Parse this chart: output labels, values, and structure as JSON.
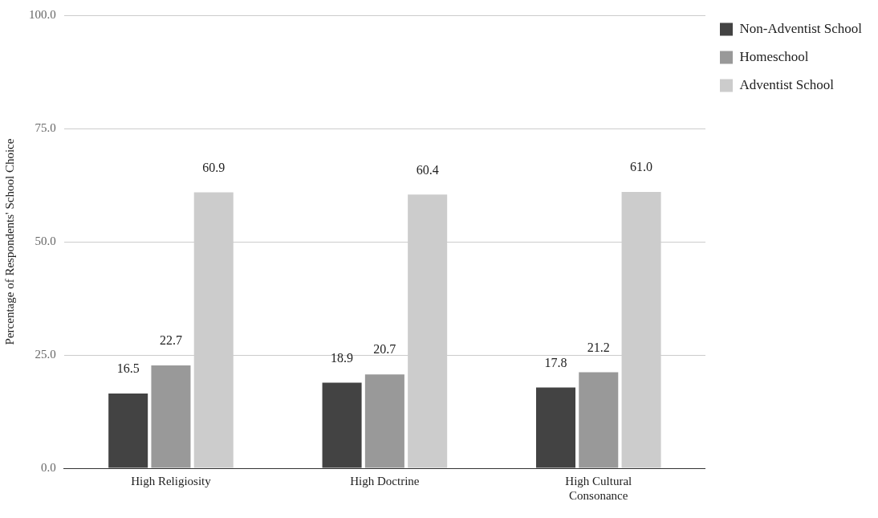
{
  "chart_data": {
    "type": "bar",
    "ylabel": "Percentage of Respondents' School Choice",
    "categories": [
      "High Religiosity",
      "High Doctrine",
      [
        "High Cultural",
        "Consonance"
      ]
    ],
    "series": [
      {
        "name": "Non-Adventist School",
        "color": "#434343",
        "values": [
          16.5,
          18.9,
          17.8
        ],
        "value_labels": [
          "16.5",
          "18.9",
          "17.8"
        ]
      },
      {
        "name": "Homeschool",
        "color": "#999999",
        "values": [
          22.7,
          20.7,
          21.2
        ],
        "value_labels": [
          "22.7",
          "20.7",
          "21.2"
        ]
      },
      {
        "name": "Adventist School",
        "color": "#cccccc",
        "values": [
          60.9,
          60.4,
          61.0
        ],
        "value_labels": [
          "60.9",
          "60.4",
          "61.0"
        ]
      }
    ],
    "ylim": [
      0,
      100
    ],
    "yticks": [
      {
        "value": 0,
        "label": "0.0"
      },
      {
        "value": 25,
        "label": "25.0"
      },
      {
        "value": 50,
        "label": "50.0"
      },
      {
        "value": 75,
        "label": "75.0"
      },
      {
        "value": 100,
        "label": "100.0"
      }
    ],
    "grid": "y",
    "legend": "top right"
  }
}
